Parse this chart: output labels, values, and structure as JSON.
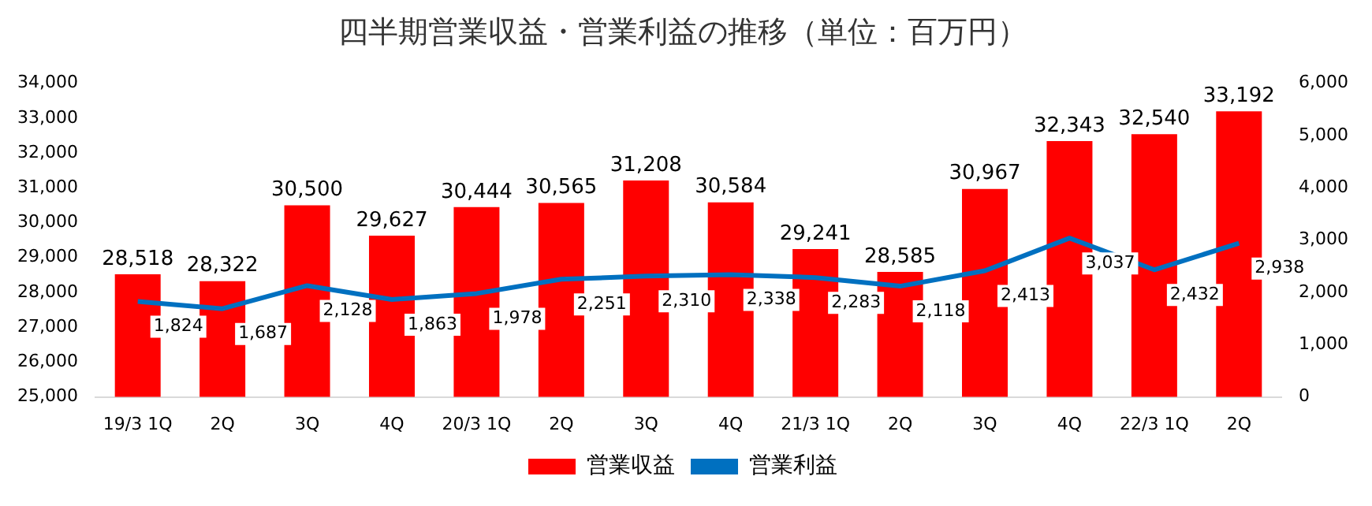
{
  "chart_data": {
    "type": "bar",
    "title": "四半期営業収益・営業利益の推移（単位：百万円）",
    "categories": [
      "19/3 1Q",
      "2Q",
      "3Q",
      "4Q",
      "20/3 1Q",
      "2Q",
      "3Q",
      "4Q",
      "21/3 1Q",
      "2Q",
      "3Q",
      "4Q",
      "22/3 1Q",
      "2Q"
    ],
    "series": [
      {
        "name": "営業収益",
        "color": "#ff0000",
        "values": [
          28518,
          28322,
          30500,
          29627,
          30444,
          30565,
          31208,
          30584,
          29241,
          28585,
          30967,
          32343,
          32540,
          33192
        ],
        "value_labels": [
          "28,518",
          "28,322",
          "30,500",
          "29,627",
          "30,444",
          "30,565",
          "31,208",
          "30,584",
          "29,241",
          "28,585",
          "30,967",
          "32,343",
          "32,540",
          "33,192"
        ]
      },
      {
        "name": "営業利益",
        "type": "line",
        "axis": "y2",
        "color": "#0070c0",
        "values": [
          1824,
          1687,
          2128,
          1863,
          1978,
          2251,
          2310,
          2338,
          2283,
          2118,
          2413,
          3037,
          2432,
          2938
        ],
        "value_labels": [
          "1,824",
          "1,687",
          "2,128",
          "1,863",
          "1,978",
          "2,251",
          "2,310",
          "2,338",
          "2,283",
          "2,118",
          "2,413",
          "3,037",
          "2,432",
          "2,938"
        ]
      }
    ],
    "ylim": [
      25000,
      34000
    ],
    "yticks": [
      {
        "value": 25000,
        "label": "25,000"
      },
      {
        "value": 26000,
        "label": "26,000"
      },
      {
        "value": 27000,
        "label": "27,000"
      },
      {
        "value": 28000,
        "label": "28,000"
      },
      {
        "value": 29000,
        "label": "29,000"
      },
      {
        "value": 30000,
        "label": "30,000"
      },
      {
        "value": 31000,
        "label": "31,000"
      },
      {
        "value": 32000,
        "label": "32,000"
      },
      {
        "value": 33000,
        "label": "33,000"
      },
      {
        "value": 34000,
        "label": "34,000"
      }
    ],
    "y2lim": [
      0,
      6000
    ],
    "y2ticks": [
      0,
      {
        "value": 1000,
        "label": "1,000"
      },
      {
        "value": 2000,
        "label": "2,000"
      },
      {
        "value": 3000,
        "label": "3,000"
      },
      {
        "value": 4000,
        "label": "4,000"
      },
      {
        "value": 5000,
        "label": "5,000"
      },
      {
        "value": 6000,
        "label": "6,000"
      }
    ],
    "grid": false,
    "legend": "bottom",
    "marker": "none",
    "line_style": "solid"
  }
}
